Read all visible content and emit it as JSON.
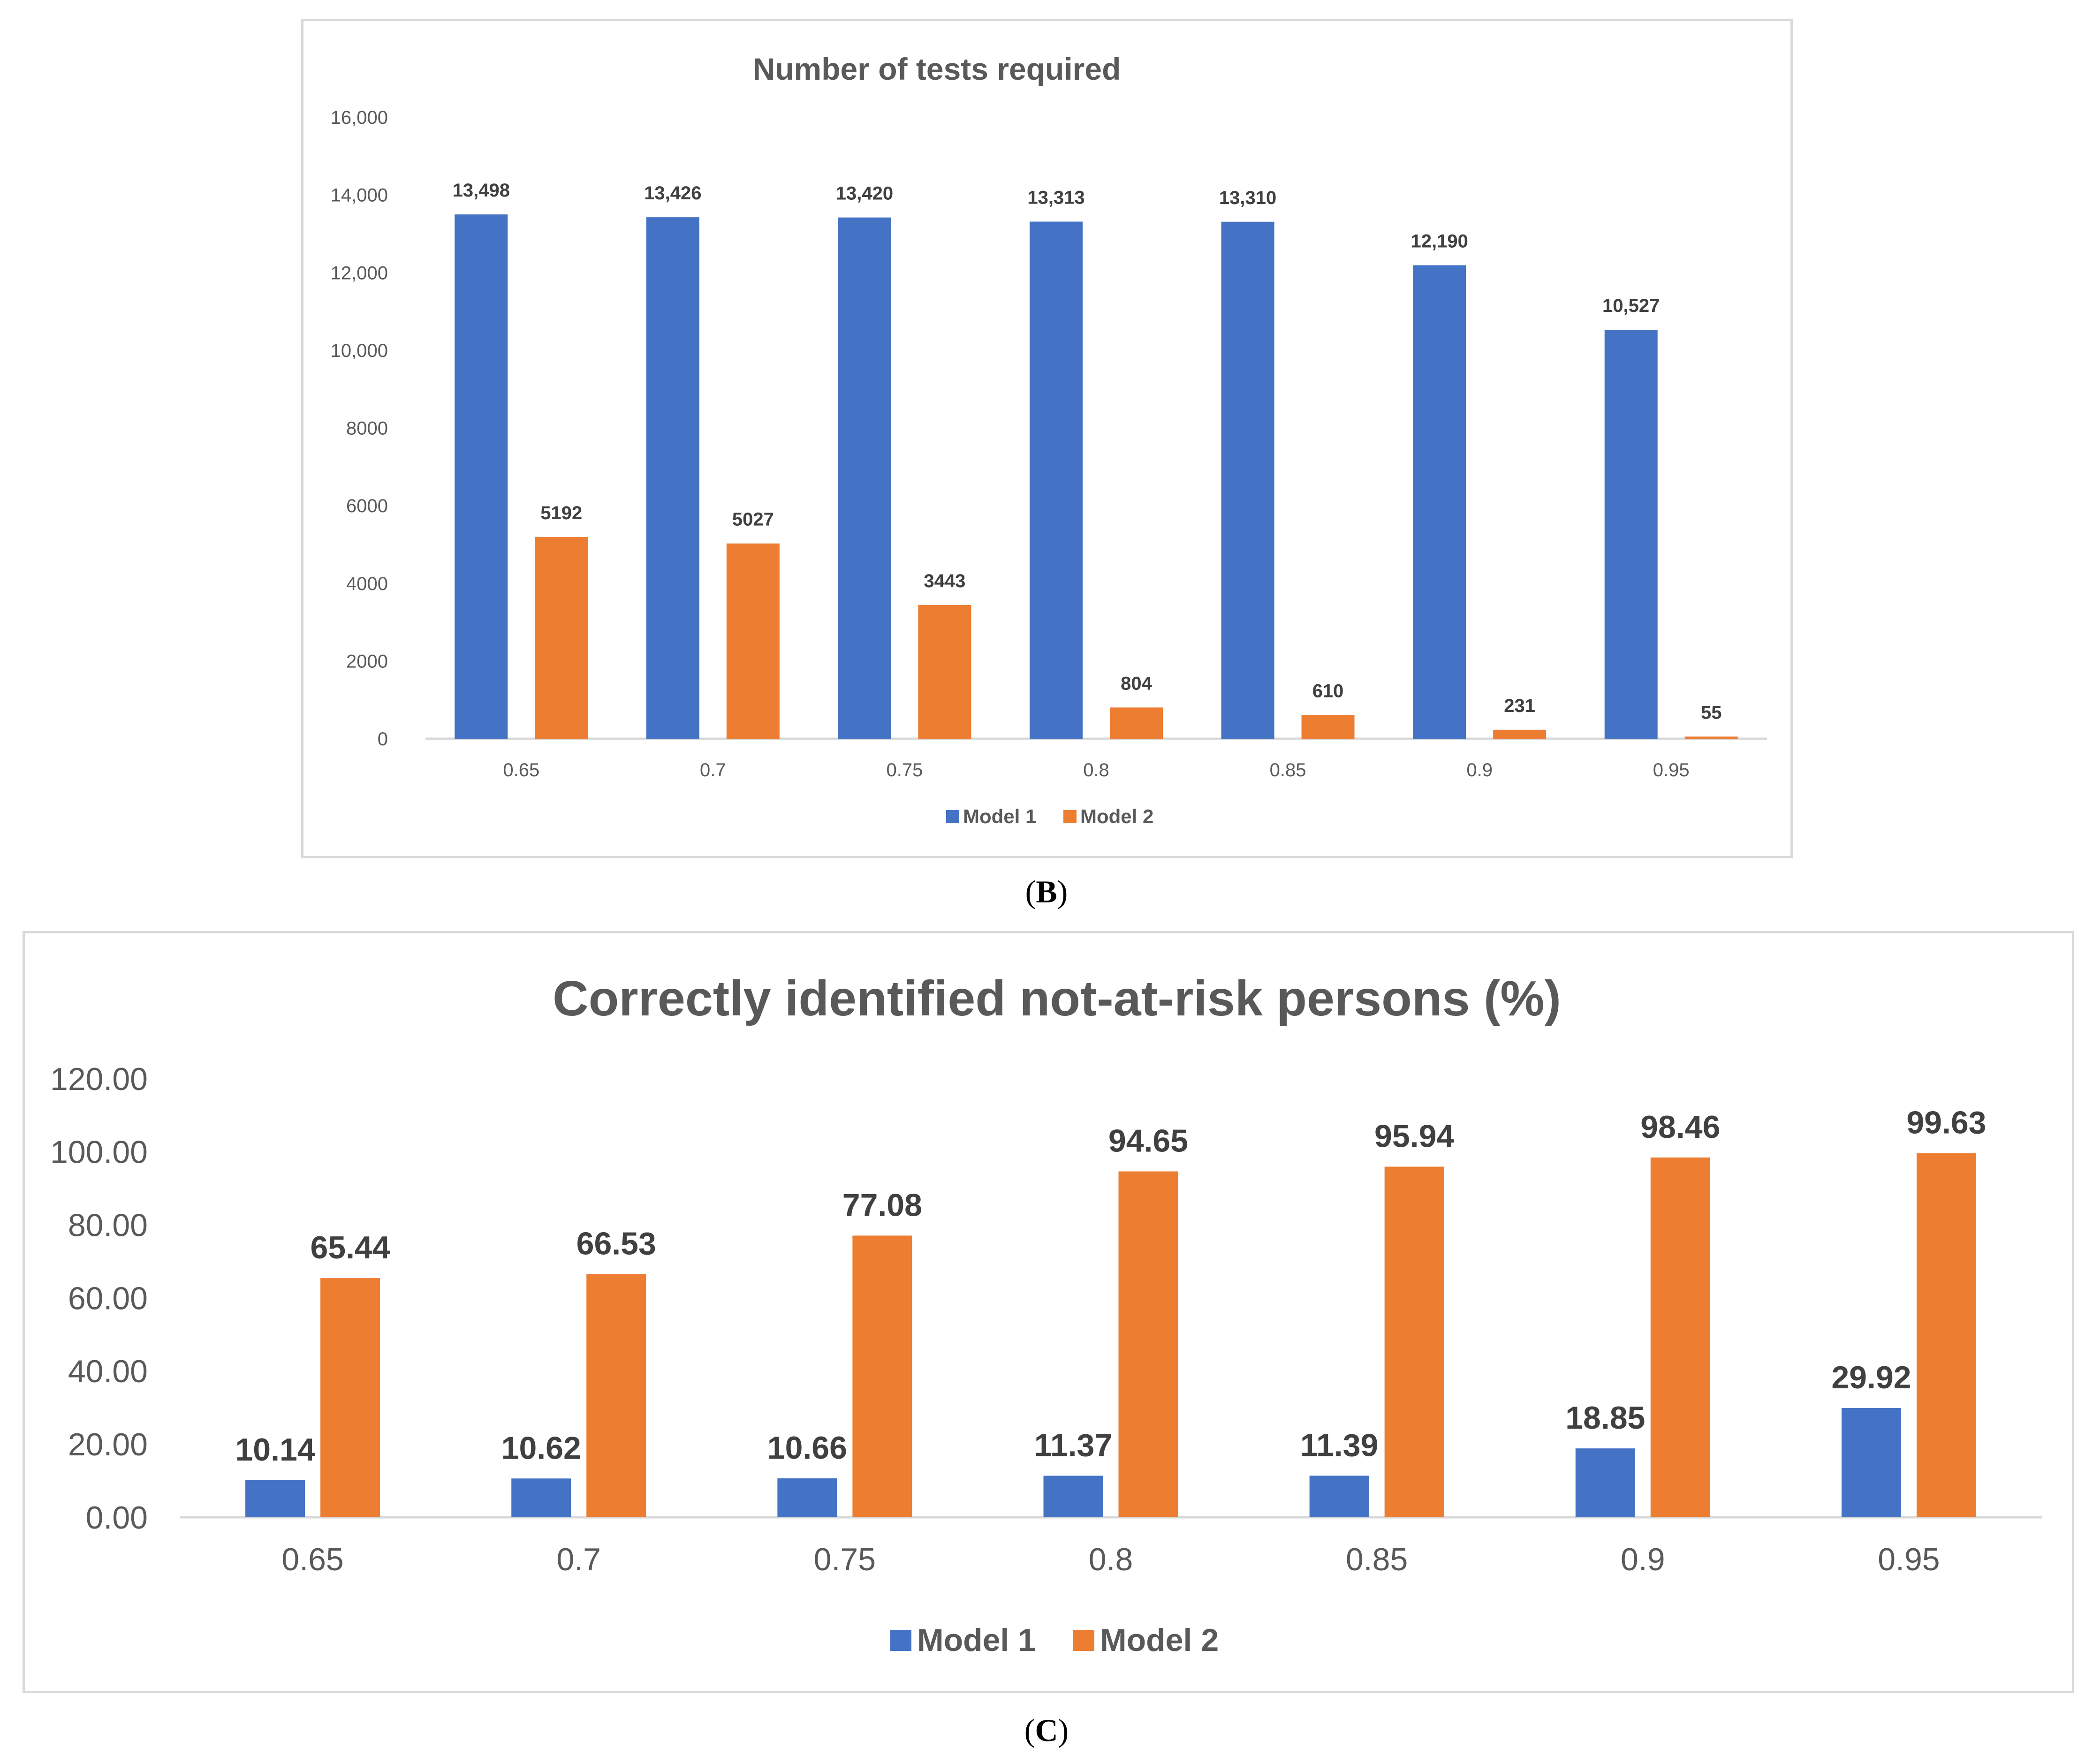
{
  "colors": {
    "model1": "#4472c4",
    "model2": "#ed7d31",
    "axis": "#d9d9d9",
    "text": "#595959"
  },
  "chart_data": [
    {
      "type": "bar",
      "panel": "B",
      "title": "Number of tests required",
      "categories": [
        "0.65",
        "0.7",
        "0.75",
        "0.8",
        "0.85",
        "0.9",
        "0.95"
      ],
      "ylim": [
        0,
        16000
      ],
      "yticks": [
        "0",
        "2000",
        "4000",
        "6000",
        "8000",
        "10,000",
        "12,000",
        "14,000",
        "16,000"
      ],
      "series": [
        {
          "name": "Model 1",
          "values": [
            13498,
            13426,
            13420,
            13313,
            13310,
            12190,
            10527
          ],
          "labels": [
            "13,498",
            "13,426",
            "13,420",
            "13,313",
            "13,310",
            "12,190",
            "10,527"
          ]
        },
        {
          "name": "Model 2",
          "values": [
            5192,
            5027,
            3443,
            804,
            610,
            231,
            55
          ],
          "labels": [
            "5192",
            "5027",
            "3443",
            "804",
            "610",
            "231",
            "55"
          ]
        }
      ],
      "legend": "bottom"
    },
    {
      "type": "bar",
      "panel": "C",
      "title": "Correctly identified not-at-risk persons (%)",
      "categories": [
        "0.65",
        "0.7",
        "0.75",
        "0.8",
        "0.85",
        "0.9",
        "0.95"
      ],
      "ylim": [
        0,
        120
      ],
      "yticks": [
        "0.00",
        "20.00",
        "40.00",
        "60.00",
        "80.00",
        "100.00",
        "120.00"
      ],
      "series": [
        {
          "name": "Model 1",
          "values": [
            10.14,
            10.62,
            10.66,
            11.37,
            11.39,
            18.85,
            29.92
          ],
          "labels": [
            "10.14",
            "10.62",
            "10.66",
            "11.37",
            "11.39",
            "18.85",
            "29.92"
          ]
        },
        {
          "name": "Model 2",
          "values": [
            65.44,
            66.53,
            77.08,
            94.65,
            95.94,
            98.46,
            99.63
          ],
          "labels": [
            "65.44",
            "66.53",
            "77.08",
            "94.65",
            "95.94",
            "98.46",
            "99.63"
          ]
        }
      ],
      "legend": "bottom"
    }
  ],
  "captions": {
    "b": {
      "open": "(",
      "letter": "B",
      "close": ")"
    },
    "c": {
      "open": "(",
      "letter": "C",
      "close": ")"
    }
  }
}
